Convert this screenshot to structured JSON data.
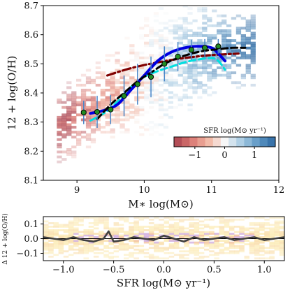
{
  "chart_data": [
    {
      "type": "scatter",
      "panel": "top",
      "xlabel": "M_* log(M_⊙)",
      "xlabel_display": "M∗ log(M⊙)",
      "ylabel": "12 + log(O/H)",
      "xlim": [
        8.5,
        12.0
      ],
      "ylim": [
        8.1,
        8.7
      ],
      "xticks": [
        "9",
        "10",
        "11",
        "12"
      ],
      "yticks": [
        "8.1",
        "8.2",
        "8.3",
        "8.4",
        "8.5",
        "8.6",
        "8.7"
      ],
      "background": "2D histogram of galaxies coloured by SFR",
      "colorbar": {
        "title": "SFR log(M⊙ yr⁻¹)",
        "ticks": [
          "−1",
          "0",
          "1"
        ],
        "range": [
          -1.7,
          1.7
        ],
        "placement": "lower-right, inside axes",
        "colors": [
          "#a8424f",
          "#d97772",
          "#f2b6a3",
          "#f7f7f7",
          "#a9cce3",
          "#5d97c4",
          "#2e6aa3"
        ]
      },
      "series": [
        {
          "style": "thick-solid",
          "color": "#0000e0",
          "x": [
            9.2,
            9.4,
            9.6,
            9.8,
            10.0,
            10.2,
            10.4,
            10.6,
            10.8,
            11.0,
            11.1,
            11.2
          ],
          "y": [
            8.33,
            8.34,
            8.36,
            8.41,
            8.46,
            8.51,
            8.54,
            8.555,
            8.56,
            8.555,
            8.535,
            8.51
          ]
        },
        {
          "style": "dashed",
          "color": "#00e0e0",
          "x": [
            9.2,
            9.4,
            9.6,
            9.8,
            10.0,
            10.2,
            10.4,
            10.6,
            10.8,
            11.0,
            11.1,
            11.2
          ],
          "y": [
            8.305,
            8.33,
            8.37,
            8.42,
            8.455,
            8.475,
            8.49,
            8.505,
            8.515,
            8.52,
            8.51,
            8.48
          ]
        },
        {
          "style": "dash-dot",
          "color": "#800000",
          "x": [
            9.45,
            9.8,
            10.2,
            10.6,
            11.0,
            11.4
          ],
          "y": [
            8.46,
            8.485,
            8.505,
            8.52,
            8.53,
            8.535
          ]
        },
        {
          "style": "dashed",
          "color": "#000000",
          "x": [
            9.3,
            9.5,
            9.7,
            9.9,
            10.1,
            10.3,
            10.5,
            10.7,
            10.9,
            11.1,
            11.3,
            11.5
          ],
          "y": [
            8.31,
            8.36,
            8.4,
            8.44,
            8.47,
            8.5,
            8.52,
            8.535,
            8.545,
            8.55,
            8.555,
            8.555
          ]
        },
        {
          "style": "markers-with-errorbars",
          "color": "#228b22",
          "x": [
            9.1,
            9.3,
            9.5,
            9.7,
            9.9,
            10.1,
            10.3,
            10.5,
            10.7,
            10.9,
            11.1
          ],
          "y": [
            8.333,
            8.335,
            8.343,
            8.39,
            8.43,
            8.455,
            8.5,
            8.525,
            8.548,
            8.555,
            8.56
          ],
          "err": [
            0.04,
            0.055,
            0.05,
            0.07,
            0.07,
            0.07,
            0.06,
            0.05,
            0.035,
            0.03,
            0.025
          ]
        }
      ]
    },
    {
      "type": "line",
      "panel": "bottom",
      "xlabel": "SFR log(M_⊙ yr⁻¹)",
      "xlabel_display": "SFR log(M⊙ yr⁻¹)",
      "ylabel": "Δ 12 + log(O/H)",
      "xlim": [
        -1.2,
        1.2
      ],
      "ylim": [
        -0.15,
        0.15
      ],
      "xticks": [
        "−1.0",
        "−0.5",
        "0.0",
        "0.5",
        "1.0"
      ],
      "yticks": [
        "−0.1",
        "0.0",
        "0.1"
      ],
      "background": "2D histogram (yellow/orange/purple)",
      "series": [
        {
          "color": "#404040",
          "x": [
            -1.2,
            -1.1,
            -1.0,
            -0.9,
            -0.8,
            -0.7,
            -0.6,
            -0.55,
            -0.5,
            -0.4,
            -0.3,
            -0.2,
            -0.1,
            0.0,
            0.1,
            0.2,
            0.3,
            0.4,
            0.5,
            0.6,
            0.7,
            0.8,
            0.9,
            1.0,
            1.1,
            1.2
          ],
          "y": [
            0.01,
            0.0,
            -0.01,
            0.01,
            -0.01,
            -0.02,
            0.0,
            0.05,
            -0.02,
            -0.01,
            0.01,
            0.0,
            -0.01,
            0.02,
            0.0,
            -0.02,
            0.01,
            -0.01,
            0.0,
            0.01,
            -0.01,
            0.0,
            0.01,
            -0.01,
            0.0,
            0.01
          ]
        }
      ]
    }
  ]
}
